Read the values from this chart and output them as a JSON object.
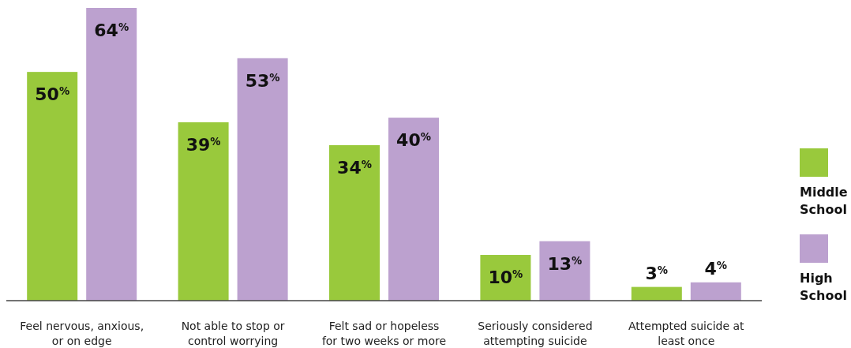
{
  "chart_data": {
    "type": "bar",
    "categories": [
      "Feel nervous, anxious, or on edge",
      "Not able to stop or control worrying",
      "Felt sad or hopeless for two weeks or more",
      "Seriously considered attempting suicide",
      "Attempted suicide at least once"
    ],
    "series": [
      {
        "name": "Middle School",
        "color": "#99c93c",
        "values": [
          50,
          39,
          34,
          10,
          3
        ],
        "value_labels": [
          "50$^{%}$",
          "39$^{%}$",
          "34$^{%}$",
          "10$^{%}$",
          "3$^{%}$"
        ]
      },
      {
        "name": "High School",
        "color": "#bca1cf",
        "values": [
          64,
          53,
          40,
          13,
          4
        ],
        "value_labels": [
          "64$^{%}$",
          "53$^{%}$",
          "40$^{%}$",
          "13$^{%}$",
          "4$^{%}$"
        ]
      }
    ],
    "legend": "right",
    "relative": false
  }
}
